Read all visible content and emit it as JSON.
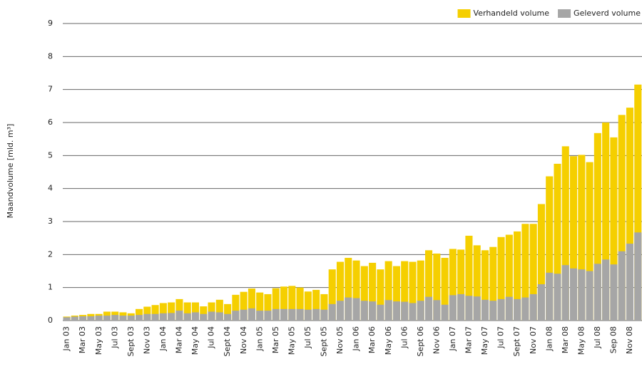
{
  "chart_data": {
    "type": "bar",
    "y_label": "Maandvolume [mld. m³]",
    "categories": [
      "Jan 03",
      null,
      "Mar 03",
      null,
      "May 03",
      null,
      "Jul 03",
      null,
      "Sept 03",
      null,
      "Nov 03",
      null,
      "Jan 04",
      null,
      "Mar 04",
      null,
      "May 04",
      null,
      "Jul 04",
      null,
      "Sept 04",
      null,
      "Nov 04",
      null,
      "Jan 05",
      null,
      "Mar 05",
      null,
      "May 05",
      null,
      "Jul 05",
      null,
      "Sept 05",
      null,
      "Nov 05",
      null,
      "Jan 06",
      null,
      "Mar 06",
      null,
      "May 06",
      null,
      "Jul 06",
      null,
      "Sept 06",
      null,
      "Nov 06",
      null,
      "Jan 07",
      null,
      "Mar 07",
      null,
      "May 07",
      null,
      "Jul 07",
      null,
      "Sept 07",
      null,
      "Nov 07",
      null,
      "Jan 08",
      null,
      "Mar 08",
      null,
      "May 08",
      null,
      "Jul 08",
      null,
      "Sep 08",
      null,
      "Nov 08",
      null
    ],
    "series": [
      {
        "name": "Verhandeld volume",
        "color": "#f5cf00",
        "values": [
          0.12,
          0.15,
          0.17,
          0.2,
          0.2,
          0.27,
          0.27,
          0.25,
          0.22,
          0.35,
          0.42,
          0.47,
          0.53,
          0.55,
          0.65,
          0.55,
          0.55,
          0.43,
          0.55,
          0.63,
          0.5,
          0.78,
          0.87,
          0.97,
          0.85,
          0.8,
          0.98,
          1.03,
          1.05,
          1.0,
          0.88,
          0.93,
          0.8,
          1.55,
          1.78,
          1.9,
          1.82,
          1.65,
          1.75,
          1.55,
          1.8,
          1.65,
          1.8,
          1.78,
          1.82,
          2.13,
          2.03,
          1.9,
          2.17,
          2.15,
          2.57,
          2.28,
          2.13,
          2.23,
          2.53,
          2.6,
          2.7,
          2.93,
          2.93,
          3.53,
          4.37,
          4.75,
          5.28,
          4.98,
          5.02,
          4.8,
          5.68,
          6.0,
          5.55,
          6.23,
          6.45,
          7.15
        ]
      },
      {
        "name": "Geleverd volume",
        "color": "#a6a6a6",
        "values": [
          0.1,
          0.12,
          0.13,
          0.13,
          0.15,
          0.15,
          0.17,
          0.15,
          0.15,
          0.17,
          0.2,
          0.2,
          0.22,
          0.23,
          0.3,
          0.22,
          0.25,
          0.2,
          0.27,
          0.25,
          0.2,
          0.3,
          0.33,
          0.37,
          0.3,
          0.3,
          0.35,
          0.35,
          0.35,
          0.35,
          0.33,
          0.35,
          0.33,
          0.5,
          0.6,
          0.7,
          0.68,
          0.6,
          0.58,
          0.48,
          0.62,
          0.58,
          0.57,
          0.53,
          0.6,
          0.72,
          0.62,
          0.48,
          0.77,
          0.8,
          0.75,
          0.73,
          0.63,
          0.6,
          0.65,
          0.72,
          0.65,
          0.7,
          0.8,
          1.1,
          1.45,
          1.42,
          1.68,
          1.58,
          1.55,
          1.5,
          1.72,
          1.85,
          1.7,
          2.1,
          2.33,
          2.67
        ]
      }
    ],
    "ylim": [
      0,
      9
    ],
    "yticks": [
      0,
      1,
      2,
      3,
      4,
      5,
      6,
      7,
      8,
      9
    ],
    "grid": true
  }
}
